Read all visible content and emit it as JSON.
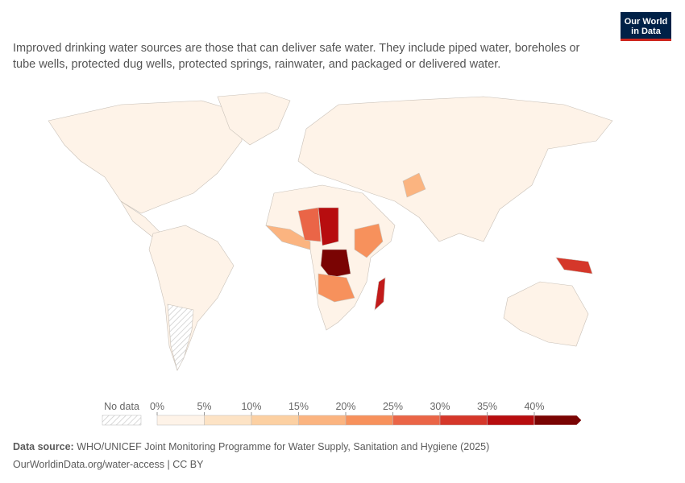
{
  "header": {
    "description_lines": [
      "Improved drinking water sources are those that can deliver safe water. They include piped water, boreholes or",
      "tube wells, protected dug wells, protected springs, rainwater, and packaged or delivered water."
    ],
    "logo_lines": [
      "Our World",
      "in Data"
    ]
  },
  "legend": {
    "no_data": "No data",
    "ticks": [
      {
        "value": 0,
        "label": "0%"
      },
      {
        "value": 5,
        "label": "5%"
      },
      {
        "value": 10,
        "label": "10%"
      },
      {
        "value": 15,
        "label": "15%"
      },
      {
        "value": 20,
        "label": "20%"
      },
      {
        "value": 25,
        "label": "25%"
      },
      {
        "value": 30,
        "label": "30%"
      },
      {
        "value": 35,
        "label": "35%"
      },
      {
        "value": 40,
        "label": "40%"
      }
    ],
    "colors": [
      "#fef3e8",
      "#fde3c5",
      "#fcd0a2",
      "#fbb480",
      "#f7915c",
      "#ea6547",
      "#d5372a",
      "#b70d0f",
      "#7a0403"
    ]
  },
  "footer": {
    "source_label": "Data source:",
    "source_text": "WHO/UNICEF Joint Monitoring Programme for Water Supply, Sanitation and Hygiene (2025)",
    "link": "OurWorldinData.org/water-access | CC BY"
  }
}
